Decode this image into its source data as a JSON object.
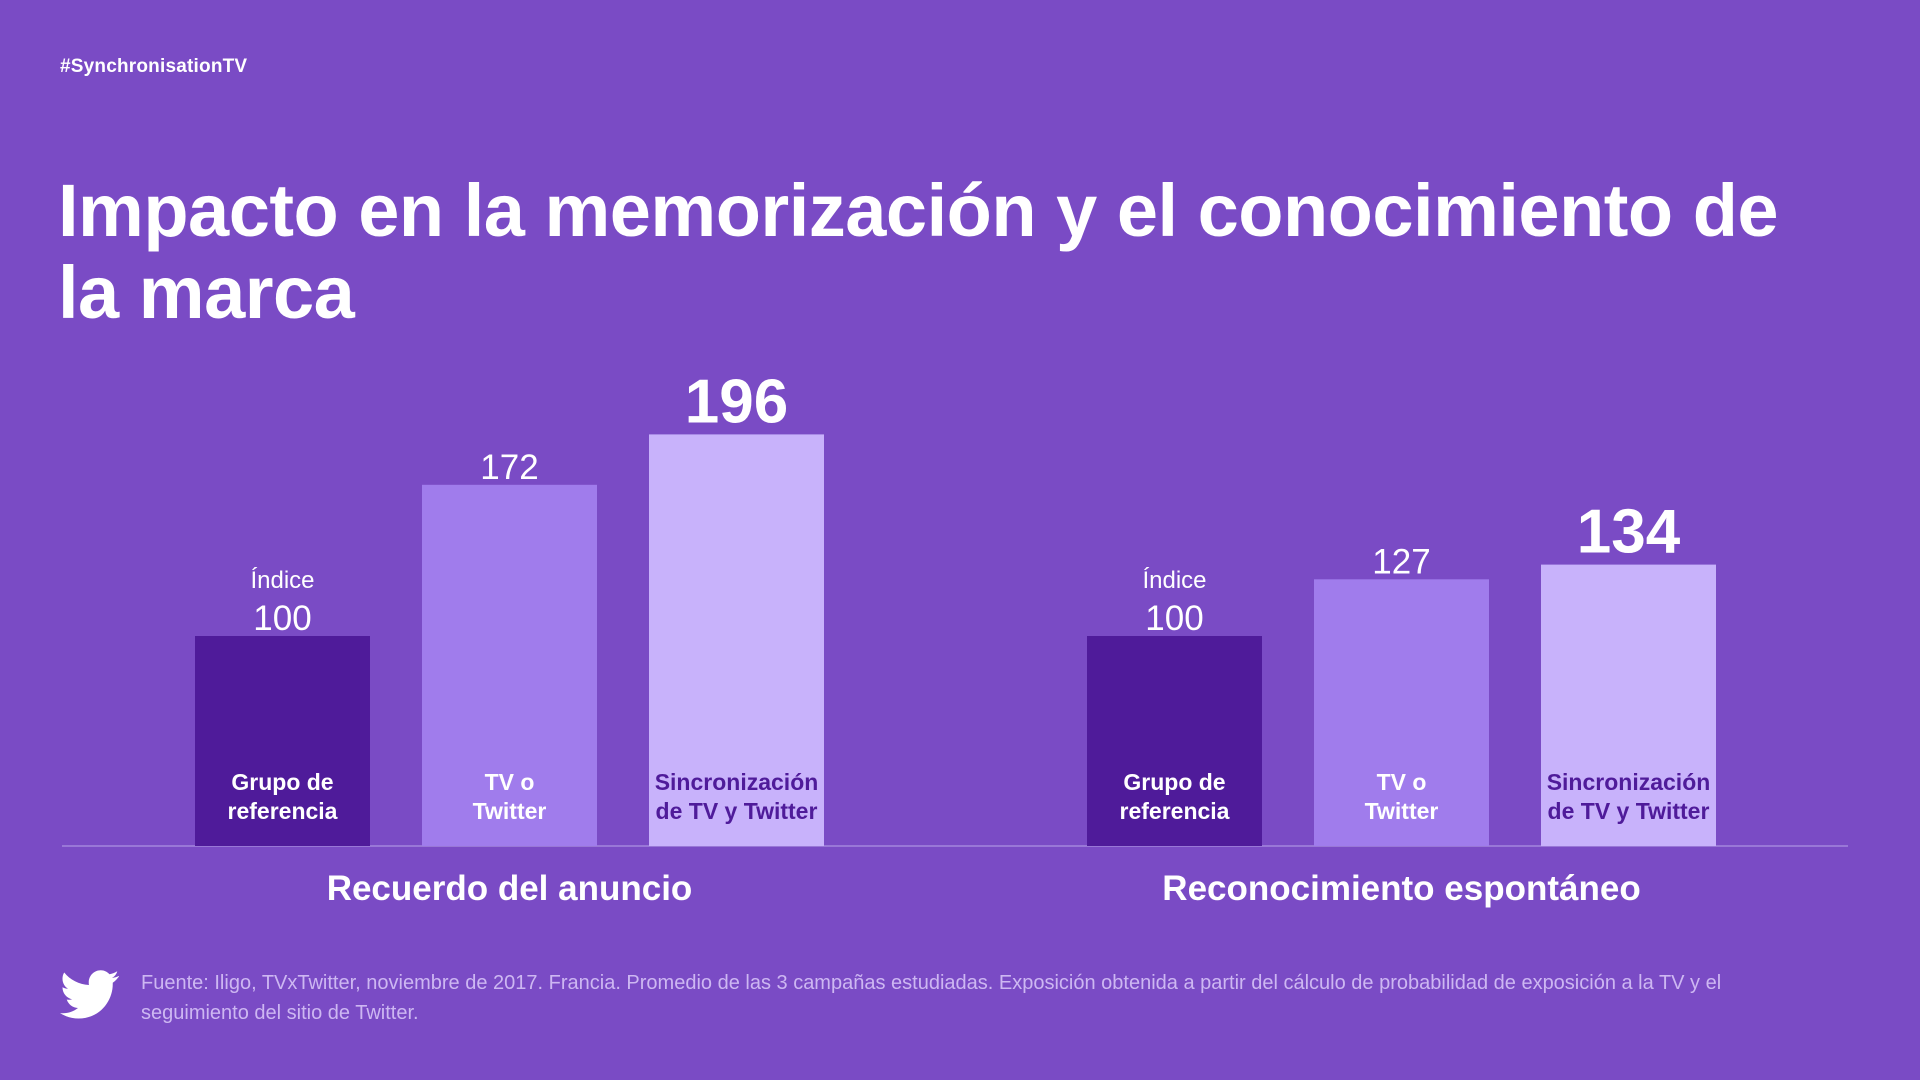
{
  "header": {
    "hashtag": "#SynchronisationTV",
    "title": "Impacto en la memorización y el conocimiento de la marca"
  },
  "footer": {
    "source": "Fuente: Iligo, TVxTwitter, noviembre de 2017. Francia. Promedio de las 3 campañas estudiadas. Exposición obtenida a partir del cálculo de probabilidad de exposición a la TV y el seguimiento del sitio de Twitter.",
    "logo_icon": "twitter-bird-icon"
  },
  "colors": {
    "background": "#7a4bc5",
    "bar_reference": "#4f1b9a",
    "bar_tv_or_twitter": "#a07cec",
    "bar_sync": "#c8b2fb",
    "text_white": "#ffffff",
    "text_dark": "#4f1b9a",
    "footer_text": "#cdb7f2"
  },
  "chart_data": {
    "type": "bar",
    "index_label": "Índice",
    "groups": [
      {
        "label": "Recuerdo del anuncio",
        "bars": [
          {
            "category": "Grupo de referencia",
            "lines": [
              "Grupo de",
              "referencia"
            ],
            "value": 100,
            "value_label": "100",
            "emphasis": false,
            "color_key": "bar_reference",
            "label_color_key": "text_white"
          },
          {
            "category": "TV o Twitter",
            "lines": [
              "TV o",
              "Twitter"
            ],
            "value": 172,
            "value_label": "172",
            "emphasis": false,
            "color_key": "bar_tv_or_twitter",
            "label_color_key": "text_white"
          },
          {
            "category": "Sincronización de TV y Twitter",
            "lines": [
              "Sincronización",
              "de TV y Twitter"
            ],
            "value": 196,
            "value_label": "196",
            "emphasis": true,
            "color_key": "bar_sync",
            "label_color_key": "text_dark"
          }
        ]
      },
      {
        "label": "Reconocimiento espontáneo",
        "bars": [
          {
            "category": "Grupo de referencia",
            "lines": [
              "Grupo de",
              "referencia"
            ],
            "value": 100,
            "value_label": "100",
            "emphasis": false,
            "color_key": "bar_reference",
            "label_color_key": "text_white"
          },
          {
            "category": "TV o Twitter",
            "lines": [
              "TV o",
              "Twitter"
            ],
            "value": 127,
            "value_label": "127",
            "emphasis": false,
            "color_key": "bar_tv_or_twitter",
            "label_color_key": "text_white"
          },
          {
            "category": "Sincronización de TV y Twitter",
            "lines": [
              "Sincronización",
              "de TV y Twitter"
            ],
            "value": 134,
            "value_label": "134",
            "emphasis": true,
            "color_key": "bar_sync",
            "label_color_key": "text_dark"
          }
        ]
      }
    ]
  }
}
